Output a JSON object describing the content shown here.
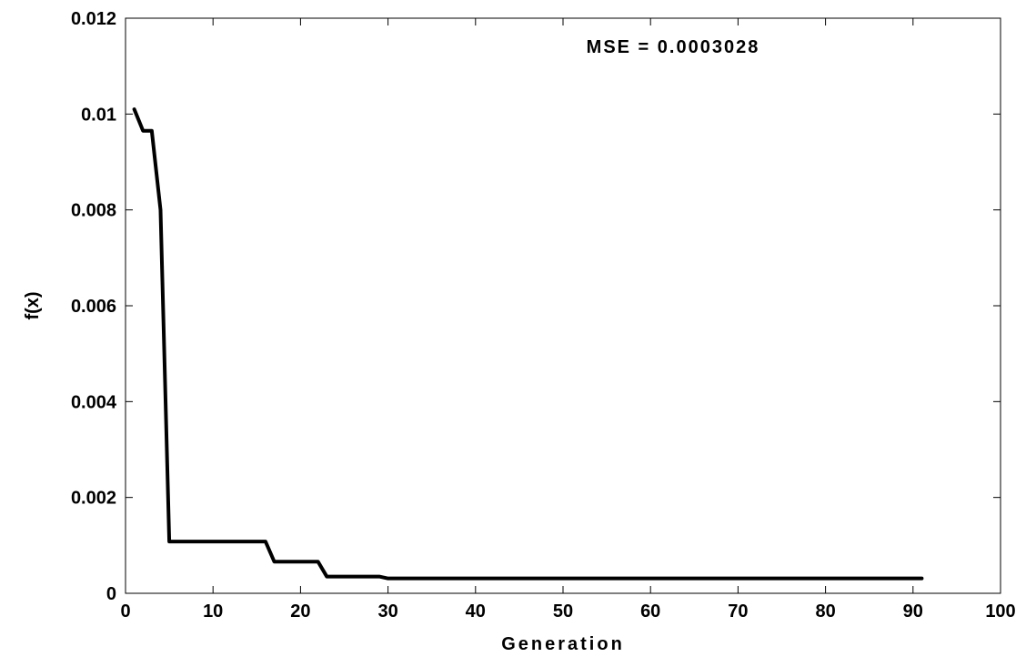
{
  "chart_data": {
    "type": "line",
    "title": "",
    "xlabel": "Generation",
    "ylabel": "f(x)",
    "xlim": [
      0,
      100
    ],
    "ylim": [
      0,
      0.012
    ],
    "x_ticks": [
      0,
      10,
      20,
      30,
      40,
      50,
      60,
      70,
      80,
      90,
      100
    ],
    "y_ticks": [
      0,
      0.002,
      0.004,
      0.006,
      0.008,
      0.01,
      0.012
    ],
    "x_tick_labels": [
      "0",
      "10",
      "20",
      "30",
      "40",
      "50",
      "60",
      "70",
      "80",
      "90",
      "100"
    ],
    "y_tick_labels": [
      "0",
      "0.002",
      "0.004",
      "0.006",
      "0.008",
      "0.01",
      "0.012"
    ],
    "grid": false,
    "annotation": "MSE = 0.0003028",
    "line_color": "#000000",
    "series": [
      {
        "x": [
          1,
          2,
          3,
          4,
          5,
          16,
          17,
          22,
          23,
          29,
          30,
          91
        ],
        "y": [
          0.0101,
          0.00965,
          0.00965,
          0.008,
          0.00108,
          0.00108,
          0.00066,
          0.00066,
          0.00035,
          0.00035,
          0.00031,
          0.00031
        ]
      }
    ]
  }
}
